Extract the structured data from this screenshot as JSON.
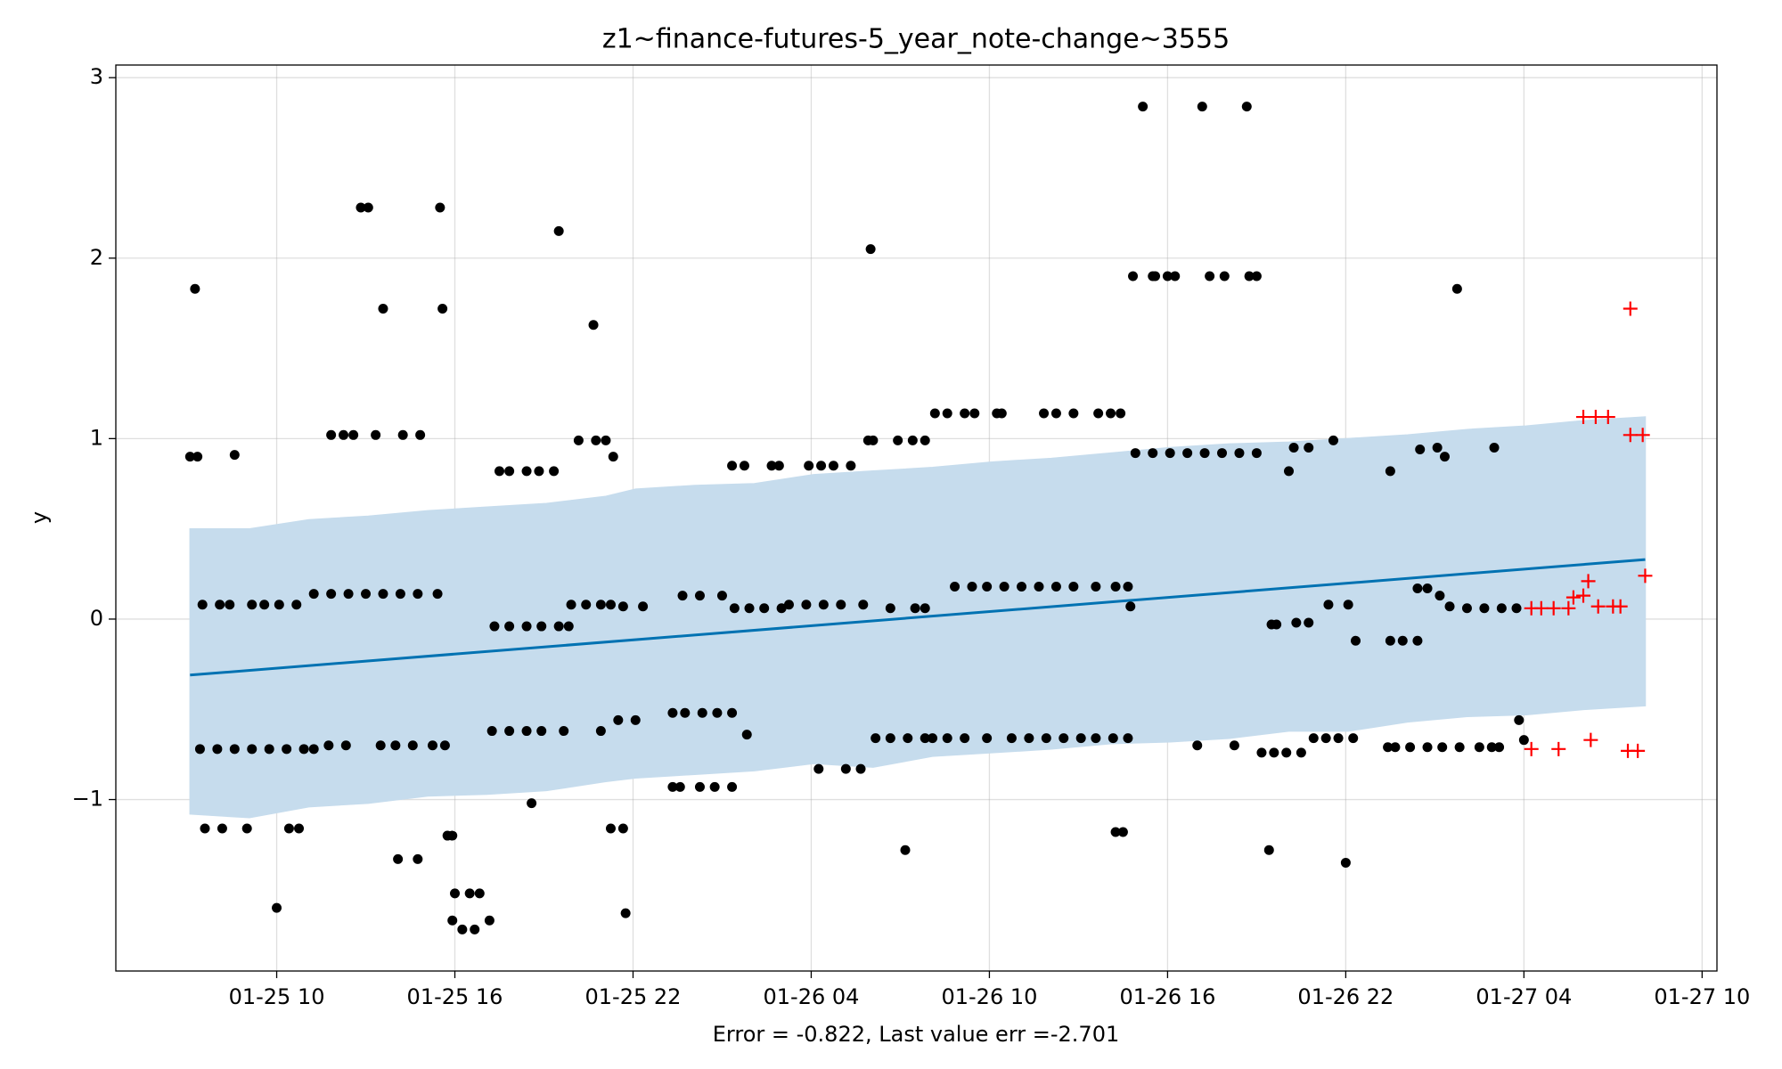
{
  "chart_data": {
    "type": "scatter",
    "title": "z1~finance-futures-5_year_note-change~3555",
    "xlabel": "Error = -0.822, Last value err =-2.701",
    "ylabel": "y",
    "xlim": [
      "01-25 04:35",
      "01-27 10:30"
    ],
    "ylim": [
      -1.95,
      3.07
    ],
    "xticks": [
      "01-25 10",
      "01-25 16",
      "01-25 22",
      "01-26 04",
      "01-26 10",
      "01-26 16",
      "01-26 22",
      "01-27 04",
      "01-27 10"
    ],
    "yticks": [
      {
        "value": -1,
        "label": "−1"
      },
      0,
      1,
      2,
      3
    ],
    "grid": true,
    "series": [
      {
        "type": "band",
        "color": "#c6dced",
        "x": [
          "01-25 07:05",
          "01-25 09:05",
          "01-25 11:05",
          "01-25 13:05",
          "01-25 15:05",
          "01-25 17:05",
          "01-25 19:05",
          "01-25 21:05",
          "01-25 22:05",
          "01-26 00:05",
          "01-26 02:05",
          "01-26 04:05",
          "01-26 06:05",
          "01-26 08:05",
          "01-26 10:05",
          "01-26 12:05",
          "01-26 14:05",
          "01-26 16:05",
          "01-26 18:05",
          "01-26 20:05",
          "01-26 22:05",
          "01-27 00:05",
          "01-27 02:05",
          "01-27 04:05",
          "01-27 06:05",
          "01-27 08:05"
        ],
        "upper": [
          0.5,
          0.5,
          0.55,
          0.57,
          0.6,
          0.62,
          0.64,
          0.68,
          0.72,
          0.74,
          0.75,
          0.8,
          0.82,
          0.84,
          0.87,
          0.89,
          0.92,
          0.95,
          0.97,
          0.98,
          1.0,
          1.02,
          1.05,
          1.07,
          1.1,
          1.12
        ],
        "lower": [
          -1.08,
          -1.1,
          -1.04,
          -1.02,
          -0.98,
          -0.97,
          -0.95,
          -0.9,
          -0.88,
          -0.86,
          -0.84,
          -0.8,
          -0.82,
          -0.76,
          -0.74,
          -0.72,
          -0.69,
          -0.68,
          -0.66,
          -0.62,
          -0.62,
          -0.57,
          -0.54,
          -0.53,
          -0.5,
          -0.48
        ]
      },
      {
        "type": "line",
        "color": "#0072b2",
        "x": [
          "01-25 07:05",
          "01-27 08:05"
        ],
        "values": [
          -0.31,
          0.33
        ]
      },
      {
        "type": "dot",
        "color": "#000000",
        "x": [
          "01-25 07:15",
          "01-25 07:05",
          "01-25 07:20",
          "01-25 08:35",
          "01-25 07:30",
          "01-25 08:05",
          "01-25 08:25",
          "01-25 09:10",
          "01-25 09:35",
          "01-25 10:05",
          "01-25 10:40",
          "01-25 07:25",
          "01-25 08:00",
          "01-25 08:35",
          "01-25 09:10",
          "01-25 09:45",
          "01-25 10:20",
          "01-25 10:55",
          "01-25 11:15",
          "01-25 07:35",
          "01-25 08:10",
          "01-25 09:00",
          "01-25 10:25",
          "01-25 10:45",
          "01-25 10:00",
          "01-25 11:15",
          "01-25 11:50",
          "01-25 12:25",
          "01-25 13:00",
          "01-25 13:35",
          "01-25 14:10",
          "01-25 14:45",
          "01-25 15:25",
          "01-25 11:50",
          "01-25 12:15",
          "01-25 12:35",
          "01-25 13:20",
          "01-25 14:15",
          "01-25 14:50",
          "01-25 12:50",
          "01-25 13:05",
          "01-25 13:35",
          "01-25 11:45",
          "01-25 12:20",
          "01-25 13:30",
          "01-25 14:00",
          "01-25 14:35",
          "01-25 15:15",
          "01-25 15:40",
          "01-25 14:05",
          "01-25 14:45",
          "01-25 15:30",
          "01-25 15:35",
          "01-25 15:45",
          "01-25 15:55",
          "01-25 16:00",
          "01-25 16:30",
          "01-25 16:50",
          "01-25 15:55",
          "01-25 16:15",
          "01-25 16:40",
          "01-25 17:10",
          "01-25 17:15",
          "01-25 17:50",
          "01-25 18:25",
          "01-25 18:55",
          "01-25 19:40",
          "01-25 17:30",
          "01-25 17:50",
          "01-25 18:25",
          "01-25 18:50",
          "01-25 19:20",
          "01-25 17:20",
          "01-25 17:50",
          "01-25 18:25",
          "01-25 18:55",
          "01-25 19:30",
          "01-25 19:50",
          "01-25 18:35",
          "01-25 19:30",
          "01-25 20:10",
          "01-25 20:45",
          "01-25 21:05",
          "01-25 21:20",
          "01-25 20:40",
          "01-25 19:55",
          "01-25 20:25",
          "01-25 20:55",
          "01-25 21:15",
          "01-25 20:55",
          "01-25 21:30",
          "01-25 22:05",
          "01-25 21:40",
          "01-25 22:20",
          "01-25 21:15",
          "01-25 21:40",
          "01-25 21:45",
          "01-25 23:20",
          "01-25 23:45",
          "01-26 00:20",
          "01-26 00:50",
          "01-26 01:20",
          "01-25 23:20",
          "01-25 23:35",
          "01-26 00:15",
          "01-26 00:45",
          "01-26 01:20",
          "01-25 23:40",
          "01-26 00:15",
          "01-26 01:00",
          "01-26 01:25",
          "01-26 01:55",
          "01-26 02:25",
          "01-26 03:00",
          "01-26 01:50",
          "01-26 01:20",
          "01-26 01:45",
          "01-26 02:40",
          "01-26 02:55",
          "01-26 03:15",
          "01-26 03:50",
          "01-26 04:25",
          "01-26 05:00",
          "01-26 05:45",
          "01-26 03:55",
          "01-26 04:20",
          "01-26 04:45",
          "01-26 05:20",
          "01-26 04:15",
          "01-26 05:10",
          "01-26 05:40",
          "01-26 05:55",
          "01-26 06:05",
          "01-26 06:00",
          "01-26 06:10",
          "01-26 06:40",
          "01-26 07:15",
          "01-26 07:50",
          "01-26 06:40",
          "01-26 07:30",
          "01-26 07:50",
          "01-26 06:55",
          "01-26 07:25",
          "01-26 07:50",
          "01-26 07:10",
          "01-26 08:05",
          "01-26 08:35",
          "01-26 09:10",
          "01-26 09:55",
          "01-26 08:10",
          "01-26 08:35",
          "01-26 09:10",
          "01-26 09:30",
          "01-26 10:15",
          "01-26 10:25",
          "01-26 08:50",
          "01-26 09:25",
          "01-26 09:55",
          "01-26 10:30",
          "01-26 11:05",
          "01-26 11:40",
          "01-26 12:15",
          "01-26 12:50",
          "01-26 13:35",
          "01-26 10:45",
          "01-26 11:20",
          "01-26 11:55",
          "01-26 12:30",
          "01-26 11:50",
          "01-26 12:15",
          "01-26 12:50",
          "01-26 13:40",
          "01-26 14:05",
          "01-26 14:25",
          "01-26 13:05",
          "01-26 13:35",
          "01-26 14:10",
          "01-26 14:40",
          "01-26 14:15",
          "01-26 14:30",
          "01-26 14:15",
          "01-26 14:40",
          "01-26 14:45",
          "01-26 14:50",
          "01-26 15:30",
          "01-26 15:35",
          "01-26 16:00",
          "01-26 16:15",
          "01-26 15:10",
          "01-26 17:10",
          "01-26 18:40",
          "01-26 14:55",
          "01-26 15:30",
          "01-26 16:05",
          "01-26 16:40",
          "01-26 17:15",
          "01-26 17:50",
          "01-26 18:25",
          "01-26 19:00",
          "01-26 17:25",
          "01-26 17:55",
          "01-26 18:45",
          "01-26 19:00",
          "01-26 17:00",
          "01-26 18:15",
          "01-26 19:10",
          "01-26 19:35",
          "01-26 20:00",
          "01-26 20:30",
          "01-26 19:25",
          "01-26 19:30",
          "01-26 19:40",
          "01-26 20:20",
          "01-26 20:45",
          "01-26 20:05",
          "01-26 20:15",
          "01-26 20:45",
          "01-26 21:35",
          "01-26 20:55",
          "01-26 21:20",
          "01-26 21:45",
          "01-26 22:15",
          "01-26 21:25",
          "01-26 22:05",
          "01-26 22:20",
          "01-26 22:00",
          "01-26 23:30",
          "01-26 23:55",
          "01-27 00:25",
          "01-26 23:30",
          "01-26 23:25",
          "01-26 23:40",
          "01-27 00:10",
          "01-27 00:45",
          "01-27 01:15",
          "01-27 00:25",
          "01-27 00:45",
          "01-27 01:10",
          "01-27 01:30",
          "01-27 00:30",
          "01-27 01:05",
          "01-27 01:20",
          "01-27 01:45",
          "01-27 01:50",
          "01-27 02:30",
          "01-27 02:55",
          "01-27 03:10",
          "01-27 02:05",
          "01-27 02:40",
          "01-27 03:15",
          "01-27 03:45",
          "01-27 03:00",
          "01-27 03:50",
          "01-27 04:00"
        ],
        "values": [
          1.83,
          0.9,
          0.9,
          0.91,
          0.08,
          0.08,
          0.08,
          0.08,
          0.08,
          0.08,
          0.08,
          -0.72,
          -0.72,
          -0.72,
          -0.72,
          -0.72,
          -0.72,
          -0.72,
          -0.72,
          -1.16,
          -1.16,
          -1.16,
          -1.16,
          -1.16,
          -1.6,
          0.14,
          0.14,
          0.14,
          0.14,
          0.14,
          0.14,
          0.14,
          0.14,
          1.02,
          1.02,
          1.02,
          1.02,
          1.02,
          1.02,
          2.28,
          2.28,
          1.72,
          -0.7,
          -0.7,
          -0.7,
          -0.7,
          -0.7,
          -0.7,
          -0.7,
          -1.33,
          -1.33,
          2.28,
          1.72,
          -1.2,
          -1.2,
          -1.52,
          -1.52,
          -1.52,
          -1.67,
          -1.72,
          -1.72,
          -1.67,
          -0.62,
          -0.62,
          -0.62,
          -0.62,
          -0.62,
          0.82,
          0.82,
          0.82,
          0.82,
          0.82,
          -0.04,
          -0.04,
          -0.04,
          -0.04,
          -0.04,
          -0.04,
          -1.02,
          2.15,
          0.99,
          0.99,
          0.99,
          0.9,
          1.63,
          0.08,
          0.08,
          0.08,
          0.08,
          -0.62,
          -0.56,
          -0.56,
          0.07,
          0.07,
          -1.16,
          -1.16,
          -1.63,
          -0.52,
          -0.52,
          -0.52,
          -0.52,
          -0.52,
          -0.93,
          -0.93,
          -0.93,
          -0.93,
          -0.93,
          0.13,
          0.13,
          0.13,
          0.06,
          0.06,
          0.06,
          0.06,
          -0.64,
          0.85,
          0.85,
          0.85,
          0.85,
          0.08,
          0.08,
          0.08,
          0.08,
          0.08,
          0.85,
          0.85,
          0.85,
          0.85,
          -0.83,
          -0.83,
          -0.83,
          0.99,
          0.99,
          2.05,
          -0.66,
          -0.66,
          -0.66,
          -0.66,
          0.06,
          0.06,
          0.06,
          0.99,
          0.99,
          0.99,
          -1.28,
          -0.66,
          -0.66,
          -0.66,
          -0.66,
          1.14,
          1.14,
          1.14,
          1.14,
          1.14,
          1.14,
          0.18,
          0.18,
          0.18,
          0.18,
          0.18,
          0.18,
          0.18,
          0.18,
          0.18,
          -0.66,
          -0.66,
          -0.66,
          -0.66,
          1.14,
          1.14,
          1.14,
          1.14,
          1.14,
          1.14,
          -0.66,
          -0.66,
          -0.66,
          -0.66,
          -1.18,
          -1.18,
          0.18,
          0.18,
          0.07,
          1.9,
          1.9,
          1.9,
          1.9,
          1.9,
          2.84,
          2.84,
          2.84,
          0.92,
          0.92,
          0.92,
          0.92,
          0.92,
          0.92,
          0.92,
          0.92,
          1.9,
          1.9,
          1.9,
          1.9,
          -0.7,
          -0.7,
          -0.74,
          -0.74,
          -0.74,
          -0.74,
          -1.28,
          -0.03,
          -0.03,
          -0.02,
          -0.02,
          0.82,
          0.95,
          0.95,
          0.99,
          -0.66,
          -0.66,
          -0.66,
          -0.66,
          0.08,
          0.08,
          -0.12,
          -1.35,
          -0.12,
          -0.12,
          -0.12,
          0.82,
          -0.71,
          -0.71,
          -0.71,
          -0.71,
          -0.71,
          0.17,
          0.17,
          0.13,
          0.07,
          0.94,
          0.95,
          0.9,
          1.83,
          -0.71,
          -0.71,
          -0.71,
          -0.71,
          0.06,
          0.06,
          0.06,
          0.06,
          0.95,
          -0.56,
          -0.67
        ]
      },
      {
        "type": "plus",
        "color": "#ff0000",
        "x": [
          "01-27 04:15",
          "01-27 04:35",
          "01-27 05:00",
          "01-27 05:30",
          "01-27 05:40",
          "01-27 06:00",
          "01-27 06:10",
          "01-27 06:30",
          "01-27 07:00",
          "01-27 07:15",
          "01-27 04:15",
          "01-27 05:10",
          "01-27 06:15",
          "01-27 07:30",
          "01-27 07:50",
          "01-27 06:00",
          "01-27 06:25",
          "01-27 06:50",
          "01-27 07:35",
          "01-27 08:00",
          "01-27 07:35",
          "01-27 08:05"
        ],
        "values": [
          0.06,
          0.06,
          0.06,
          0.06,
          0.12,
          0.13,
          0.21,
          0.07,
          0.07,
          0.07,
          -0.72,
          -0.72,
          -0.67,
          -0.73,
          -0.73,
          1.12,
          1.12,
          1.12,
          1.02,
          1.02,
          1.72,
          0.24
        ]
      }
    ]
  }
}
